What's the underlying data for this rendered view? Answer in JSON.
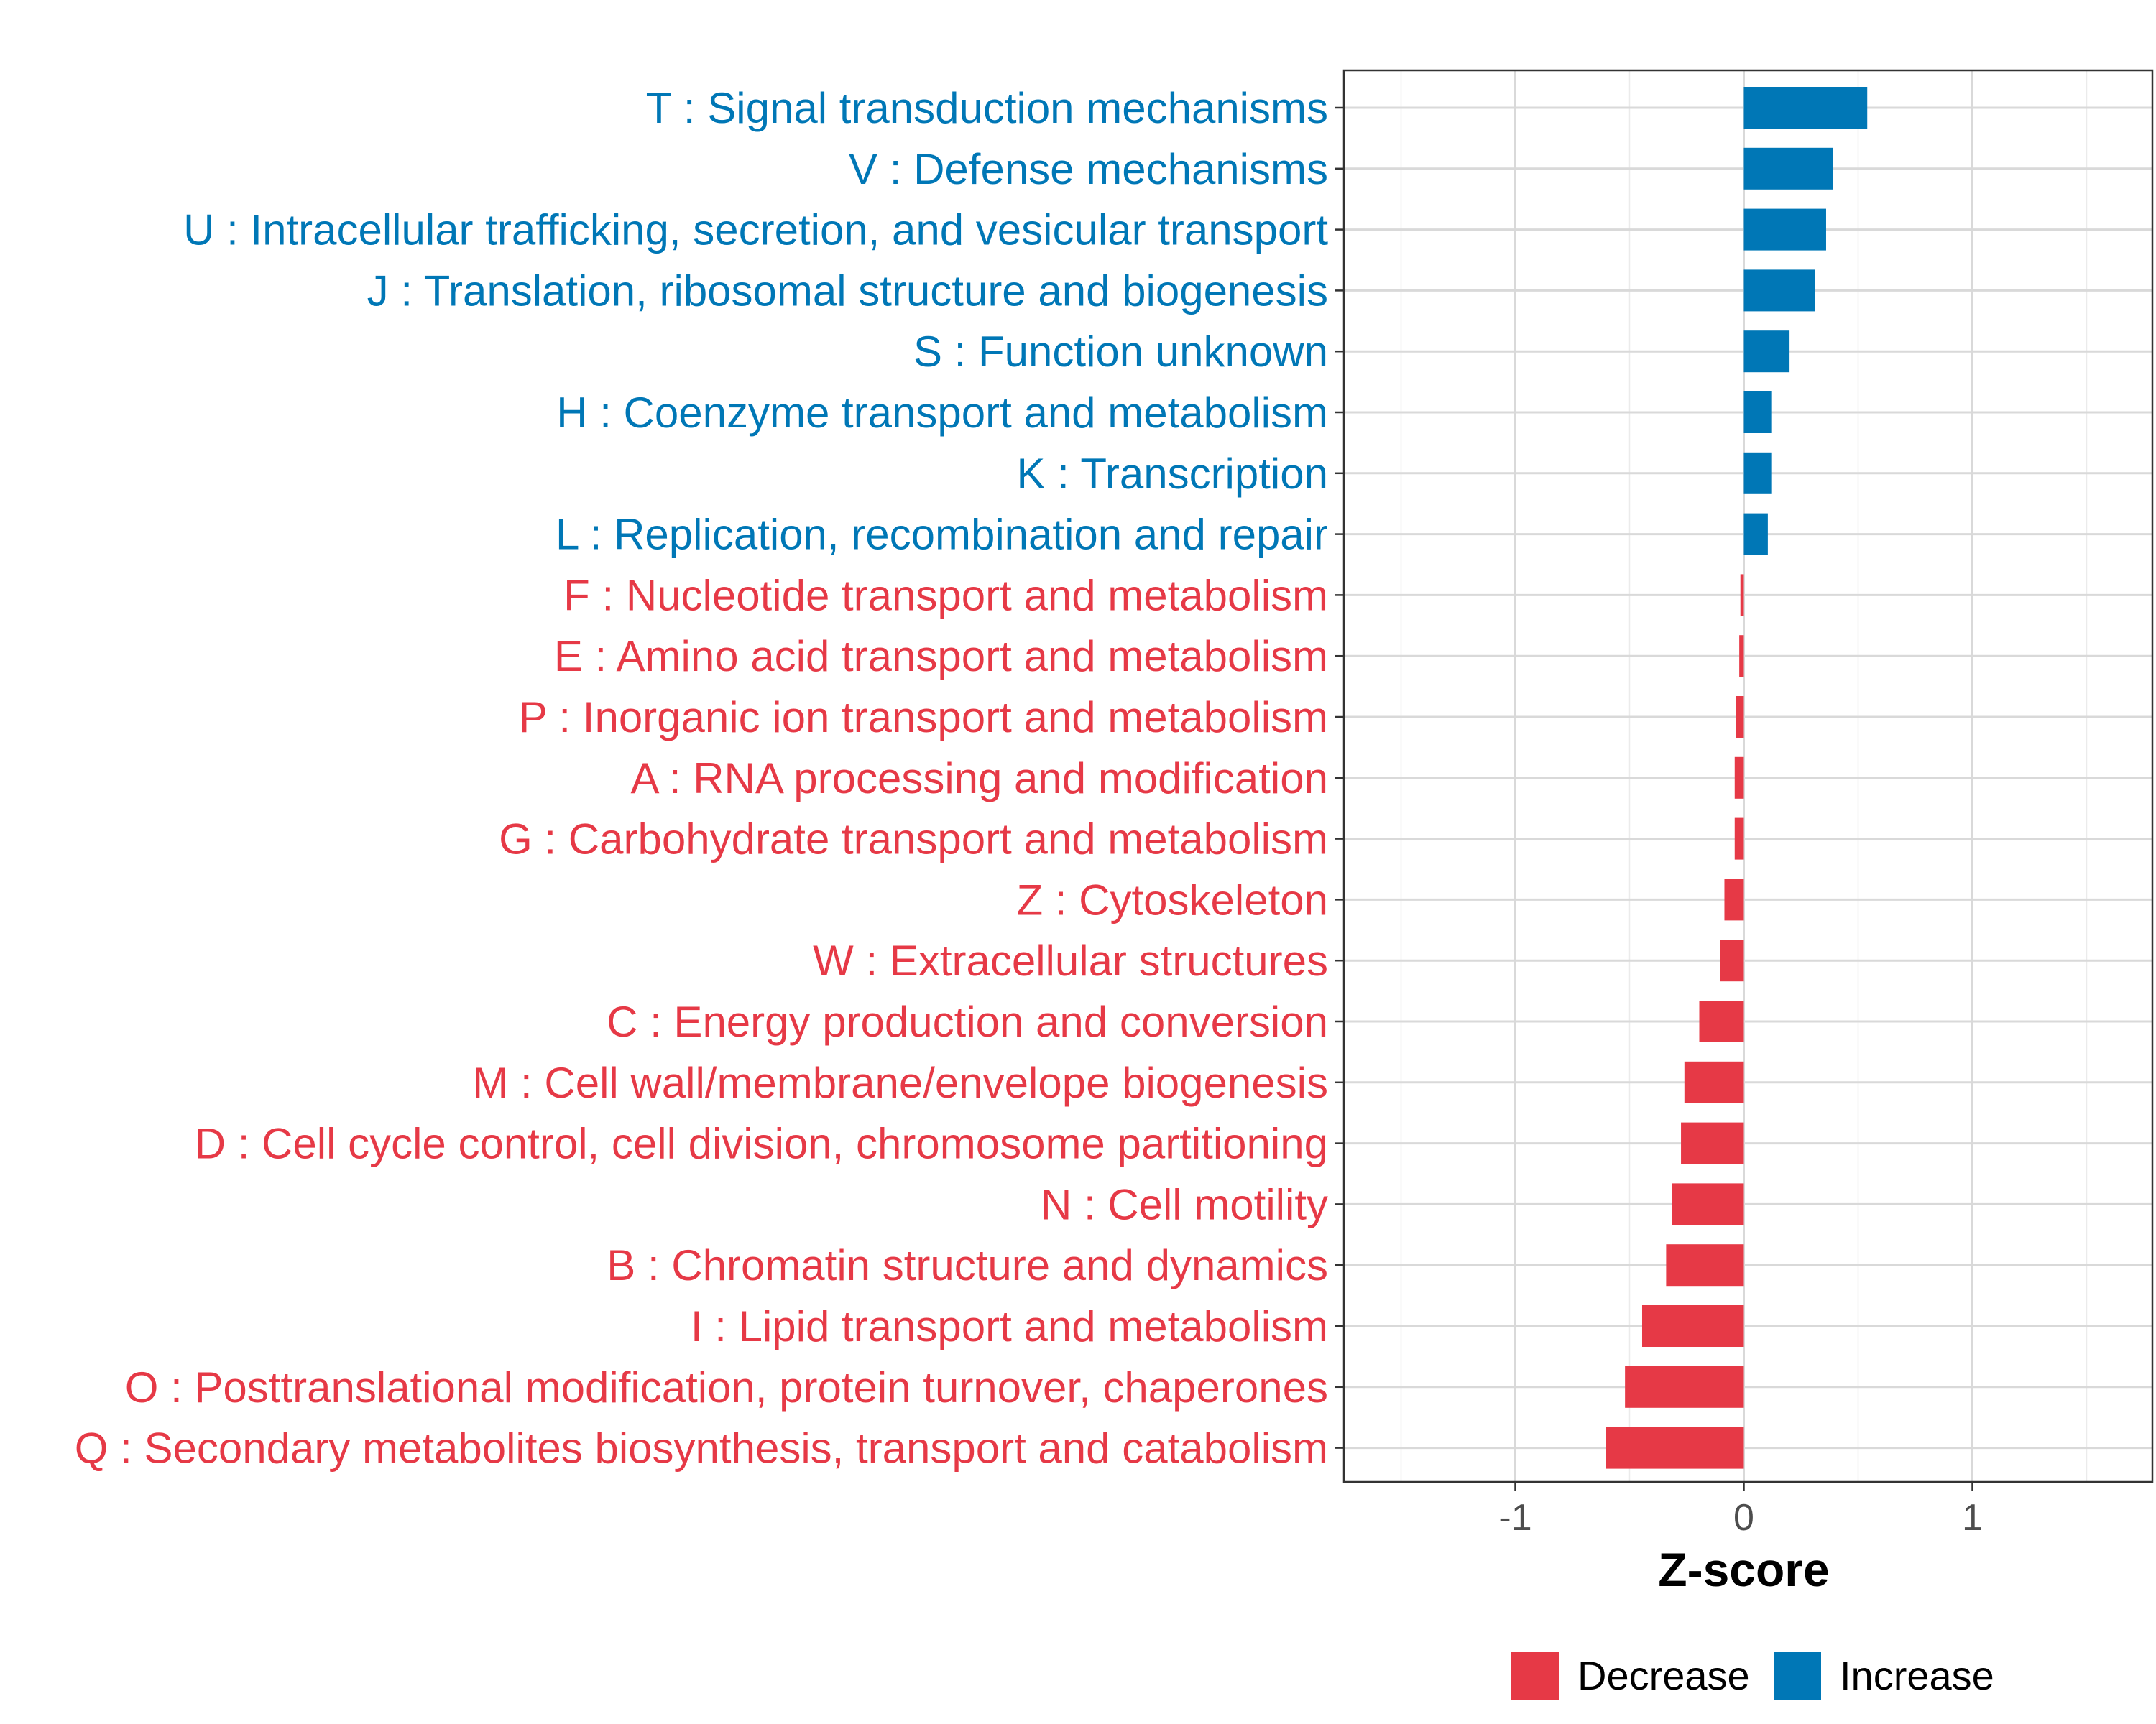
{
  "chart_data": {
    "type": "bar",
    "orientation": "horizontal",
    "xlabel": "Z-score",
    "ylabel": "",
    "xlim": [
      -1.75,
      1.75
    ],
    "xticks": [
      -1,
      0,
      1
    ],
    "xtick_labels": [
      "-1",
      "0",
      "1"
    ],
    "grid": true,
    "legend": {
      "position": "bottom",
      "entries": [
        {
          "label": "Decrease",
          "color": "#E63946"
        },
        {
          "label": "Increase",
          "color": "#0077B6"
        }
      ]
    },
    "categories": [
      "T : Signal transduction mechanisms",
      "V : Defense mechanisms",
      "U : Intracellular trafficking, secretion, and vesicular transport",
      "J : Translation, ribosomal structure and biogenesis",
      "S : Function unknown",
      "H : Coenzyme transport and metabolism",
      "K : Transcription",
      "L : Replication, recombination and repair",
      "F : Nucleotide transport and metabolism",
      "E : Amino acid transport and metabolism",
      "P : Inorganic ion transport and metabolism",
      "A : RNA processing and modification",
      "G : Carbohydrate transport and metabolism",
      "Z : Cytoskeleton",
      "W : Extracellular structures",
      "C : Energy production and conversion",
      "M : Cell wall/membrane/envelope biogenesis",
      "D : Cell cycle control, cell division, chromosome partitioning",
      "N : Cell motility",
      "B : Chromatin structure and dynamics",
      "I : Lipid transport and metabolism",
      "O : Posttranslational modification, protein turnover, chaperones",
      "Q : Secondary metabolites biosynthesis, transport and catabolism"
    ],
    "values": [
      0.54,
      0.39,
      0.36,
      0.31,
      0.2,
      0.12,
      0.12,
      0.105,
      -0.015,
      -0.02,
      -0.035,
      -0.04,
      -0.04,
      -0.085,
      -0.105,
      -0.195,
      -0.26,
      -0.275,
      -0.315,
      -0.34,
      -0.445,
      -0.52,
      -0.605
    ]
  }
}
